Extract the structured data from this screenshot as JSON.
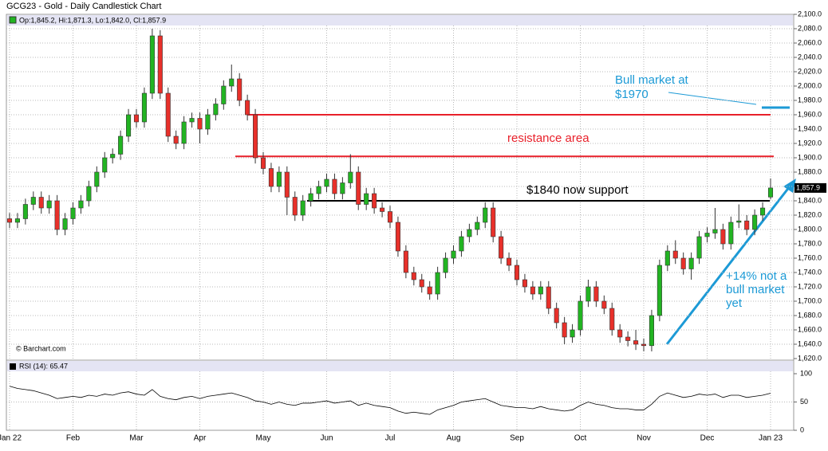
{
  "chart_data": {
    "type": "candlestick",
    "title": "GCG23 - Gold - Daily Candlestick Chart",
    "legend_text": "Op:1,845.2, Hi:1,871.3, Lo:1,842.0, Cl:1,857.9",
    "last_label": "1,857.9",
    "source": "© Barchart.com",
    "up_color": "#22b422",
    "down_color": "#e8302a",
    "grid": true,
    "categories": [
      "Jan 22",
      null,
      null,
      null,
      null,
      null,
      null,
      null,
      "Feb",
      null,
      null,
      null,
      null,
      null,
      null,
      null,
      "Mar",
      null,
      null,
      null,
      null,
      null,
      null,
      null,
      "Apr",
      null,
      null,
      null,
      null,
      null,
      null,
      null,
      "May",
      null,
      null,
      null,
      null,
      null,
      null,
      null,
      "Jun",
      null,
      null,
      null,
      null,
      null,
      null,
      null,
      "Jul",
      null,
      null,
      null,
      null,
      null,
      null,
      null,
      "Aug",
      null,
      null,
      null,
      null,
      null,
      null,
      null,
      "Sep",
      null,
      null,
      null,
      null,
      null,
      null,
      null,
      "Oct",
      null,
      null,
      null,
      null,
      null,
      null,
      null,
      "Nov",
      null,
      null,
      null,
      null,
      null,
      null,
      null,
      "Dec",
      null,
      null,
      null,
      null,
      null,
      null,
      null,
      "Jan 23"
    ],
    "open": [
      1815,
      1810,
      1815,
      1835,
      1845,
      1830,
      1840,
      1800,
      1815,
      1830,
      1840,
      1860,
      1880,
      1900,
      1905,
      1930,
      1960,
      1950,
      1990,
      2070,
      1990,
      1930,
      1920,
      1950,
      1955,
      1940,
      1960,
      1975,
      2000,
      2010,
      1980,
      1960,
      1900,
      1885,
      1860,
      1880,
      1845,
      1820,
      1840,
      1850,
      1860,
      1870,
      1850,
      1865,
      1880,
      1835,
      1850,
      1830,
      1825,
      1810,
      1770,
      1740,
      1730,
      1720,
      1710,
      1740,
      1760,
      1770,
      1790,
      1800,
      1810,
      1830,
      1790,
      1760,
      1750,
      1730,
      1720,
      1710,
      1720,
      1690,
      1670,
      1650,
      1660,
      1700,
      1720,
      1700,
      1690,
      1660,
      1650,
      1645,
      1640,
      1638,
      1680,
      1750,
      1770,
      1760,
      1745,
      1760,
      1790,
      1795,
      1800,
      1780,
      1810,
      1812,
      1800,
      1820,
      1845.2
    ],
    "high": [
      1823,
      1823,
      1843,
      1853,
      1853,
      1848,
      1848,
      1823,
      1838,
      1848,
      1868,
      1888,
      1908,
      1913,
      1938,
      1968,
      1968,
      1998,
      2080,
      2078,
      1998,
      1938,
      1958,
      1963,
      1963,
      1968,
      1983,
      2008,
      2030,
      2018,
      1988,
      1968,
      1908,
      1893,
      1888,
      1888,
      1853,
      1848,
      1858,
      1868,
      1878,
      1878,
      1873,
      1905,
      1888,
      1858,
      1858,
      1838,
      1833,
      1818,
      1778,
      1748,
      1738,
      1728,
      1748,
      1768,
      1778,
      1798,
      1808,
      1818,
      1838,
      1838,
      1798,
      1768,
      1758,
      1738,
      1728,
      1728,
      1728,
      1698,
      1678,
      1668,
      1708,
      1730,
      1728,
      1708,
      1698,
      1668,
      1658,
      1660,
      1648,
      1688,
      1758,
      1778,
      1785,
      1768,
      1768,
      1798,
      1803,
      1830,
      1808,
      1818,
      1835,
      1820,
      1828,
      1838,
      1871.3
    ],
    "low": [
      1802,
      1802,
      1807,
      1827,
      1822,
      1822,
      1792,
      1792,
      1807,
      1822,
      1832,
      1852,
      1872,
      1892,
      1897,
      1922,
      1942,
      1942,
      1982,
      1982,
      1922,
      1912,
      1912,
      1942,
      1920,
      1932,
      1952,
      1967,
      1992,
      1972,
      1952,
      1892,
      1877,
      1852,
      1852,
      1820,
      1812,
      1812,
      1832,
      1842,
      1852,
      1842,
      1842,
      1857,
      1827,
      1827,
      1822,
      1817,
      1802,
      1762,
      1732,
      1722,
      1712,
      1702,
      1702,
      1732,
      1752,
      1762,
      1782,
      1792,
      1802,
      1782,
      1752,
      1742,
      1722,
      1712,
      1702,
      1702,
      1682,
      1662,
      1640,
      1642,
      1652,
      1692,
      1692,
      1682,
      1652,
      1642,
      1637,
      1632,
      1630,
      1630,
      1672,
      1742,
      1752,
      1737,
      1730,
      1752,
      1782,
      1787,
      1772,
      1772,
      1802,
      1792,
      1792,
      1812,
      1842.0
    ],
    "close": [
      1810,
      1815,
      1835,
      1845,
      1830,
      1840,
      1800,
      1815,
      1830,
      1840,
      1860,
      1880,
      1900,
      1905,
      1930,
      1960,
      1950,
      1990,
      2070,
      1990,
      1930,
      1920,
      1950,
      1955,
      1940,
      1960,
      1975,
      2000,
      2010,
      1980,
      1960,
      1900,
      1885,
      1860,
      1880,
      1845,
      1820,
      1840,
      1850,
      1860,
      1870,
      1850,
      1865,
      1880,
      1835,
      1850,
      1830,
      1825,
      1810,
      1770,
      1740,
      1730,
      1720,
      1710,
      1740,
      1760,
      1770,
      1790,
      1800,
      1810,
      1830,
      1790,
      1760,
      1750,
      1730,
      1720,
      1710,
      1720,
      1690,
      1670,
      1650,
      1660,
      1700,
      1720,
      1700,
      1690,
      1660,
      1650,
      1645,
      1640,
      1638,
      1680,
      1750,
      1770,
      1760,
      1745,
      1760,
      1790,
      1795,
      1800,
      1780,
      1810,
      1812,
      1800,
      1820,
      1830,
      1857.9
    ],
    "ylim": [
      1620,
      2100
    ],
    "yticks": [
      {
        "value": 1620,
        "label": "1,620.0"
      },
      {
        "value": 1640,
        "label": "1,640.0"
      },
      {
        "value": 1660,
        "label": "1,660.0"
      },
      {
        "value": 1680,
        "label": "1,680.0"
      },
      {
        "value": 1700,
        "label": "1,700.0"
      },
      {
        "value": 1720,
        "label": "1,720.0"
      },
      {
        "value": 1740,
        "label": "1,740.0"
      },
      {
        "value": 1760,
        "label": "1,760.0"
      },
      {
        "value": 1780,
        "label": "1,780.0"
      },
      {
        "value": 1800,
        "label": "1,800.0"
      },
      {
        "value": 1820,
        "label": "1,820.0"
      },
      {
        "value": 1840,
        "label": "1,840.0"
      },
      {
        "value": 1860,
        "label": "1,860.0"
      },
      {
        "value": 1880,
        "label": "1,880.0"
      },
      {
        "value": 1900,
        "label": "1,900.0"
      },
      {
        "value": 1920,
        "label": "1,920.0"
      },
      {
        "value": 1940,
        "label": "1,940.0"
      },
      {
        "value": 1960,
        "label": "1,960.0"
      },
      {
        "value": 1980,
        "label": "1,980.0"
      },
      {
        "value": 2000,
        "label": "2,000.0"
      },
      {
        "value": 2020,
        "label": "2,020.0"
      },
      {
        "value": 2040,
        "label": "2,040.0"
      },
      {
        "value": 2060,
        "label": "2,060.0"
      },
      {
        "value": 2080,
        "label": "2,080.0"
      },
      {
        "value": 2100,
        "label": "2,100.0"
      }
    ],
    "levels": [
      {
        "value": 1960,
        "color": "#e8202a"
      },
      {
        "value": 1902,
        "color": "#e8202a"
      },
      {
        "value": 1840,
        "color": "#000000"
      },
      {
        "value": 1970,
        "color": "#1c9ad6"
      }
    ],
    "annotations": {
      "bull": [
        "Bull market at",
        "$1970"
      ],
      "resistance": "resistance area",
      "support": "$1840 now support",
      "pct": [
        "+14% not a",
        "bull market",
        "yet"
      ]
    },
    "rsi": {
      "label": "RSI (14): 65.47",
      "color": "#000000",
      "values": [
        78,
        74,
        72,
        70,
        66,
        62,
        56,
        58,
        60,
        58,
        62,
        60,
        64,
        62,
        66,
        68,
        64,
        62,
        72,
        60,
        56,
        54,
        58,
        60,
        56,
        60,
        62,
        64,
        66,
        62,
        58,
        52,
        50,
        46,
        50,
        46,
        44,
        48,
        48,
        50,
        52,
        48,
        50,
        52,
        44,
        48,
        44,
        42,
        40,
        34,
        30,
        32,
        30,
        28,
        36,
        40,
        44,
        50,
        52,
        54,
        56,
        50,
        44,
        42,
        40,
        40,
        38,
        42,
        38,
        36,
        34,
        36,
        44,
        50,
        46,
        44,
        40,
        38,
        38,
        36,
        36,
        46,
        60,
        66,
        62,
        58,
        60,
        64,
        62,
        64,
        58,
        62,
        62,
        58,
        60,
        62,
        65.47
      ],
      "ylim": [
        0,
        100
      ],
      "yticks": [
        0,
        50,
        100
      ]
    }
  }
}
